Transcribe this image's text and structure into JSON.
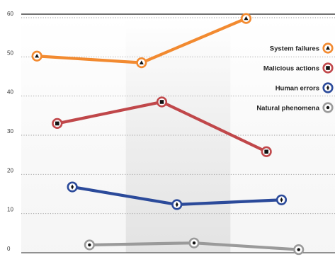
{
  "chart_data": {
    "type": "line",
    "grid": true,
    "ylim": [
      0,
      60
    ],
    "yticks": [
      0,
      10,
      20,
      30,
      40,
      50,
      60
    ],
    "x_periods": 3,
    "series": [
      {
        "name": "System failures",
        "color": "#f28a30",
        "marker": "triangle-up",
        "points": [
          {
            "x": 1,
            "y": 50.2
          },
          {
            "x": 2,
            "y": 48.5
          },
          {
            "x": 3,
            "y": 59.8
          }
        ]
      },
      {
        "name": "Malicious actions",
        "color": "#c0474a",
        "marker": "square",
        "points": [
          {
            "x": 1,
            "y": 33
          },
          {
            "x": 2,
            "y": 38.5
          },
          {
            "x": 3,
            "y": 25.8
          }
        ]
      },
      {
        "name": "Human errors",
        "color": "#2b4a9a",
        "marker": "diamond",
        "points": [
          {
            "x": 1,
            "y": 16.8
          },
          {
            "x": 2,
            "y": 12.3
          },
          {
            "x": 3,
            "y": 13.5
          }
        ]
      },
      {
        "name": "Natural phenomena",
        "color": "#9a9a9a",
        "marker": "circle",
        "points": [
          {
            "x": 1,
            "y": 2
          },
          {
            "x": 2,
            "y": 2.5
          },
          {
            "x": 3,
            "y": 0.8
          }
        ]
      }
    ],
    "legend": {
      "position": "right",
      "entries": [
        "System failures",
        "Malicious actions",
        "Human errors",
        "Natural phenomena"
      ]
    }
  }
}
